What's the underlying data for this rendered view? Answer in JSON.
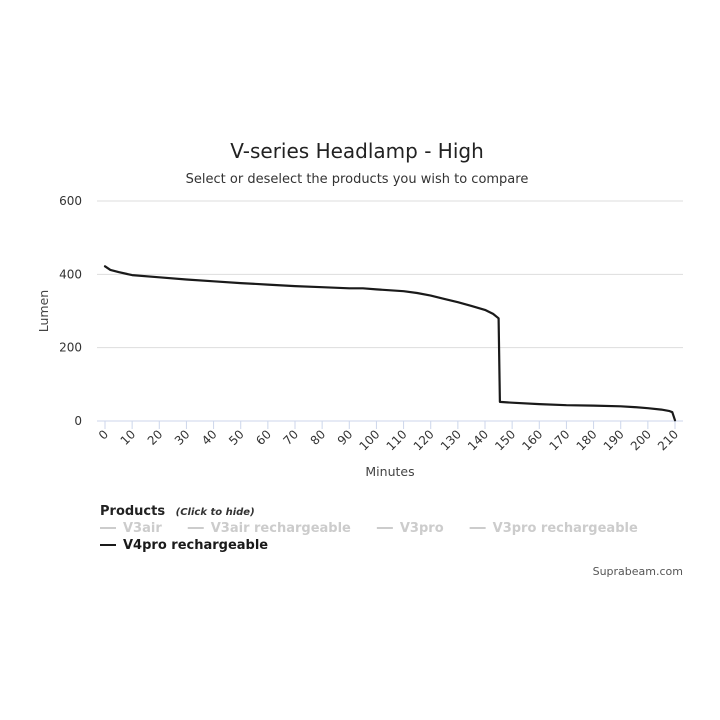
{
  "chart_data": {
    "type": "line",
    "title": "V-series Headlamp - High",
    "subtitle": "Select or deselect the products you wish to compare",
    "xlabel": "Minutes",
    "ylabel": "Lumen",
    "xlim": [
      0,
      210
    ],
    "ylim": [
      0,
      600
    ],
    "x_ticks": [
      "0",
      "10",
      "20",
      "30",
      "40",
      "50",
      "60",
      "70",
      "80",
      "90",
      "100",
      "110",
      "120",
      "130",
      "140",
      "150",
      "160",
      "170",
      "180",
      "190",
      "200",
      "210"
    ],
    "y_ticks": [
      "0",
      "200",
      "400",
      "600"
    ],
    "grid": true,
    "colors": {
      "active": "#1a1a1a",
      "hidden": "#cccccc",
      "grid": "#dddddd",
      "axis": "#ccd6eb"
    },
    "series": [
      {
        "name": "V3air",
        "visible": false,
        "x": [],
        "y": []
      },
      {
        "name": "V3air rechargeable",
        "visible": false,
        "x": [],
        "y": []
      },
      {
        "name": "V3pro",
        "visible": false,
        "x": [],
        "y": []
      },
      {
        "name": "V3pro rechargeable",
        "visible": false,
        "x": [],
        "y": []
      },
      {
        "name": "V4pro rechargeable",
        "visible": true,
        "x": [
          0,
          2,
          5,
          10,
          20,
          30,
          40,
          50,
          60,
          70,
          80,
          90,
          95,
          100,
          110,
          115,
          120,
          125,
          130,
          135,
          140,
          143,
          145,
          145.5,
          150,
          160,
          170,
          180,
          190,
          195,
          200,
          205,
          208,
          209,
          210
        ],
        "y": [
          422,
          412,
          406,
          398,
          392,
          386,
          381,
          376,
          372,
          368,
          365,
          362,
          362,
          359,
          354,
          349,
          342,
          333,
          324,
          314,
          303,
          292,
          280,
          52,
          50,
          46,
          43,
          42,
          40,
          38,
          35,
          31,
          27,
          24,
          2
        ]
      }
    ],
    "legend": {
      "heading": "Products",
      "hint": "(Click to hide)",
      "placement": "bottom-left"
    },
    "credit": "Suprabeam.com"
  }
}
